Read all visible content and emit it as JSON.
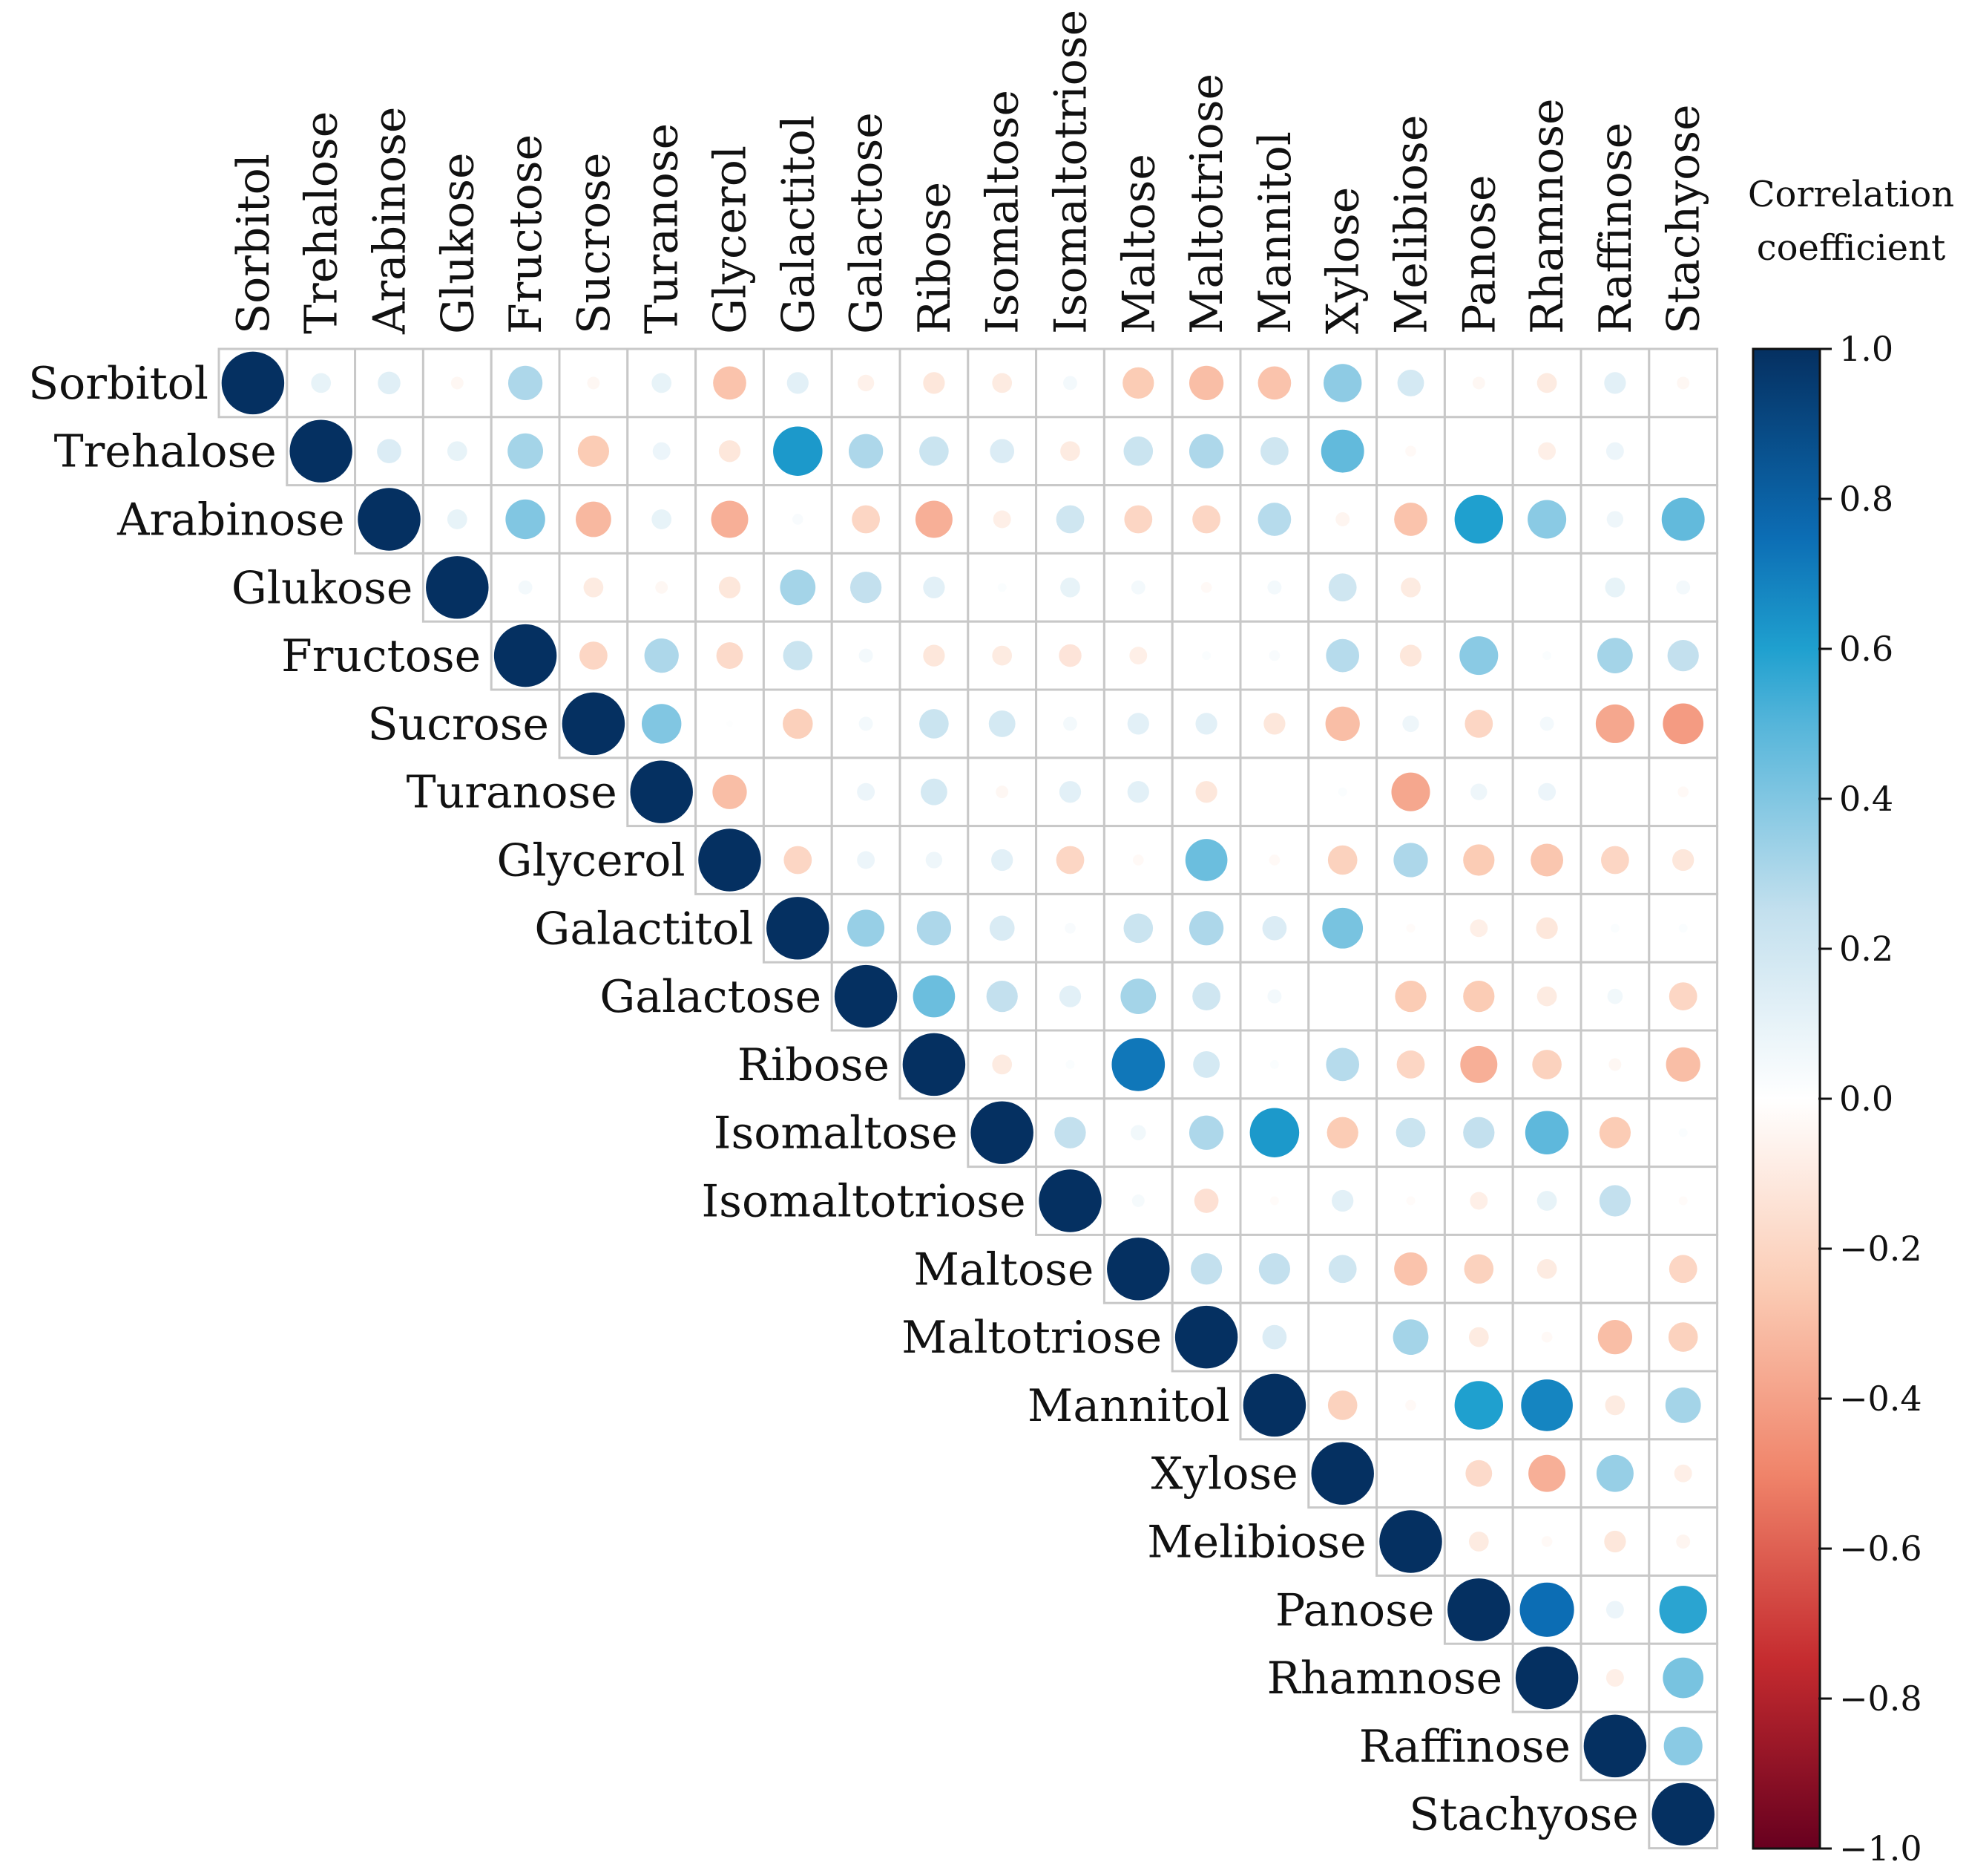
{
  "chart_data": {
    "type": "heatmap",
    "subtype": "correlation-circles-upper-triangle",
    "variables": [
      "Sorbitol",
      "Trehalose",
      "Arabinose",
      "Glukose",
      "Fructose",
      "Sucrose",
      "Turanose",
      "Glycerol",
      "Galactitol",
      "Galactose",
      "Ribose",
      "Isomaltose",
      "Isomaltotriose",
      "Maltose",
      "Maltotriose",
      "Mannitol",
      "Xylose",
      "Melibiose",
      "Panose",
      "Rhamnose",
      "Raffinose",
      "Stachyose"
    ],
    "upper_triangle_values": [
      [
        1.0,
        0.1,
        0.13,
        -0.04,
        0.3,
        -0.04,
        0.1,
        -0.28,
        0.12,
        -0.07,
        -0.12,
        -0.1,
        0.05,
        -0.25,
        -0.3,
        -0.28,
        0.37,
        0.18,
        -0.04,
        -0.1,
        0.12,
        -0.04
      ],
      [
        1.0,
        0.15,
        0.1,
        0.32,
        -0.25,
        0.08,
        -0.12,
        0.62,
        0.3,
        0.22,
        0.15,
        -0.1,
        0.22,
        0.3,
        0.2,
        0.47,
        -0.03,
        0.0,
        -0.08,
        0.08,
        0.0
      ],
      [
        1.0,
        0.1,
        0.4,
        -0.32,
        0.1,
        -0.35,
        0.03,
        -0.2,
        -0.35,
        -0.08,
        0.2,
        -0.2,
        -0.2,
        0.28,
        -0.05,
        -0.28,
        0.6,
        0.38,
        0.07,
        0.47
      ],
      [
        1.0,
        0.05,
        -0.1,
        -0.04,
        -0.12,
        0.32,
        0.25,
        0.12,
        0.02,
        0.1,
        0.05,
        -0.03,
        0.05,
        0.2,
        -0.1,
        0.0,
        0.0,
        0.1,
        0.05
      ],
      [
        1.0,
        -0.2,
        0.3,
        -0.18,
        0.22,
        0.05,
        -0.12,
        -0.1,
        -0.13,
        -0.08,
        0.02,
        0.03,
        0.28,
        -0.12,
        0.38,
        0.02,
        0.32,
        0.25
      ],
      [
        1.0,
        0.4,
        0.01,
        -0.23,
        0.05,
        0.22,
        0.18,
        0.05,
        0.12,
        0.12,
        -0.12,
        -0.3,
        0.07,
        -0.2,
        0.05,
        -0.38,
        -0.42
      ],
      [
        1.0,
        -0.3,
        0.0,
        0.08,
        0.18,
        -0.04,
        0.12,
        0.12,
        -0.12,
        0.0,
        0.02,
        -0.38,
        0.07,
        0.08,
        0.0,
        -0.03
      ],
      [
        1.0,
        -0.2,
        0.08,
        0.07,
        0.12,
        -0.2,
        -0.03,
        0.45,
        -0.03,
        -0.22,
        0.3,
        -0.25,
        -0.27,
        -0.2,
        -0.12
      ],
      [
        1.0,
        0.35,
        0.3,
        0.16,
        0.03,
        0.22,
        0.3,
        0.15,
        0.42,
        -0.02,
        -0.08,
        -0.12,
        0.02,
        0.02
      ],
      [
        1.0,
        0.45,
        0.25,
        0.12,
        0.32,
        0.2,
        0.05,
        0.0,
        -0.25,
        -0.25,
        -0.1,
        0.06,
        -0.2
      ],
      [
        1.0,
        -0.1,
        0.02,
        0.72,
        0.18,
        0.02,
        0.28,
        -0.2,
        -0.35,
        -0.22,
        -0.04,
        -0.3
      ],
      [
        1.0,
        0.25,
        0.06,
        0.3,
        0.62,
        -0.25,
        0.22,
        0.25,
        0.48,
        -0.25,
        0.02
      ],
      [
        1.0,
        0.04,
        -0.15,
        -0.02,
        0.12,
        -0.02,
        -0.08,
        0.1,
        0.25,
        -0.02
      ],
      [
        1.0,
        0.25,
        0.25,
        0.2,
        -0.28,
        -0.22,
        -0.1,
        0.0,
        -0.2
      ],
      [
        1.0,
        0.15,
        0.0,
        0.32,
        -0.1,
        -0.03,
        -0.3,
        -0.22
      ],
      [
        1.0,
        -0.22,
        -0.03,
        0.6,
        0.68,
        -0.1,
        0.32
      ],
      [
        1.0,
        0.0,
        -0.18,
        -0.35,
        0.35,
        -0.08
      ],
      [
        1.0,
        -0.1,
        -0.03,
        -0.12,
        -0.05
      ],
      [
        1.0,
        0.75,
        0.08,
        0.58
      ],
      [
        1.0,
        -0.08,
        0.42
      ],
      [
        1.0,
        0.38
      ],
      [
        1.0
      ]
    ],
    "colorbar": {
      "title_line1": "Correlation",
      "title_line2": "coefficient",
      "range": [
        -1.0,
        1.0
      ],
      "ticks": [
        "1.0",
        "0.8",
        "0.6",
        "0.4",
        "0.2",
        "0.0",
        "−0.2",
        "−0.4",
        "−0.6",
        "−0.8",
        "−1.0"
      ],
      "tick_values": [
        1.0,
        0.8,
        0.6,
        0.4,
        0.2,
        0.0,
        -0.2,
        -0.4,
        -0.6,
        -0.8,
        -1.0
      ],
      "colors": {
        "-1.0": "#67001f",
        "-0.75": "#c52b2f",
        "-0.5": "#f0846a",
        "-0.25": "#fbccb5",
        "0.0": "#ffffff",
        "0.25": "#c3e0ee",
        "0.5": "#55b5da",
        "0.6": "#1fa0cf",
        "0.75": "#0c6db4",
        "1.0": "#053061"
      }
    },
    "grid": true,
    "legend_position": "right"
  }
}
